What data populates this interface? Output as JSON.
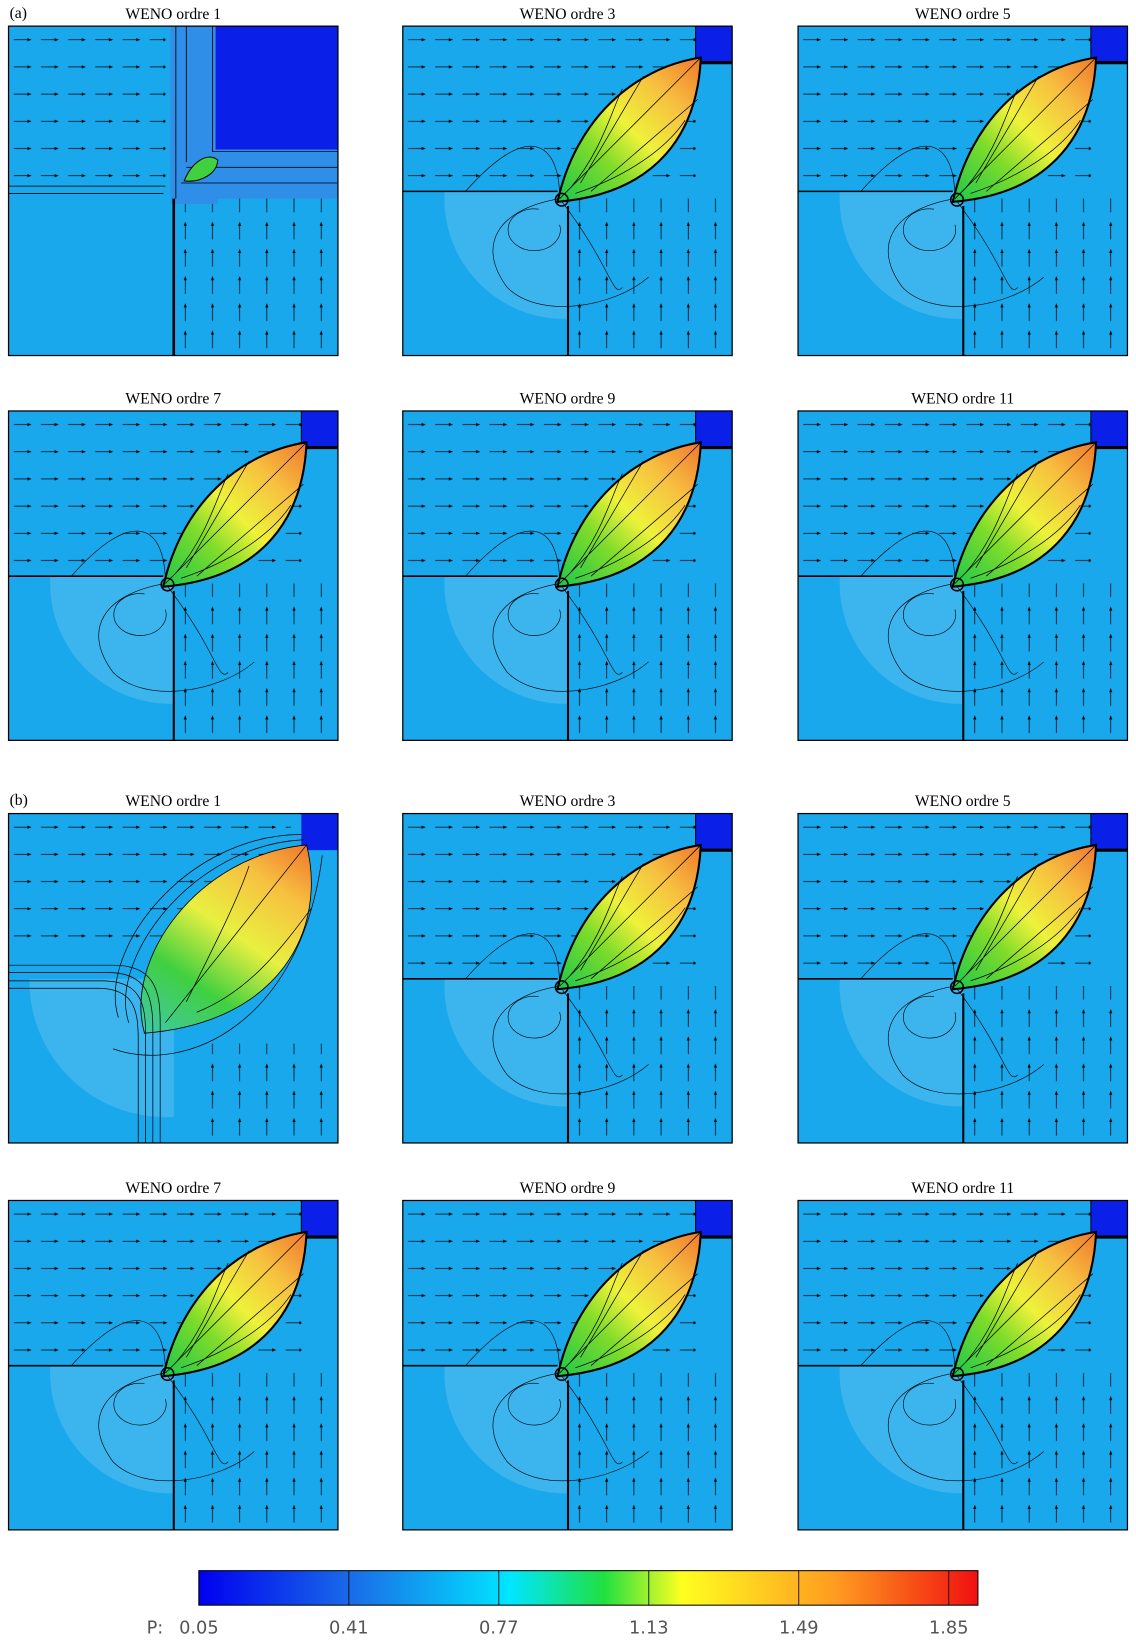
{
  "panel_groups": [
    {
      "label": "(a)",
      "panels": [
        {
          "title": "WENO ordre 1"
        },
        {
          "title": "WENO ordre 3"
        },
        {
          "title": "WENO ordre 5"
        },
        {
          "title": "WENO ordre 7"
        },
        {
          "title": "WENO ordre 9"
        },
        {
          "title": "WENO ordre 11"
        }
      ]
    },
    {
      "label": "(b)",
      "panels": [
        {
          "title": "WENO ordre 1"
        },
        {
          "title": "WENO ordre 3"
        },
        {
          "title": "WENO ordre 5"
        },
        {
          "title": "WENO ordre 7"
        },
        {
          "title": "WENO ordre 9"
        },
        {
          "title": "WENO ordre 11"
        }
      ]
    }
  ],
  "colorbar": {
    "label": "P:",
    "lim": [
      0.05,
      1.92
    ],
    "ticks": [
      0.05,
      0.41,
      0.77,
      1.13,
      1.49,
      1.85
    ]
  }
}
